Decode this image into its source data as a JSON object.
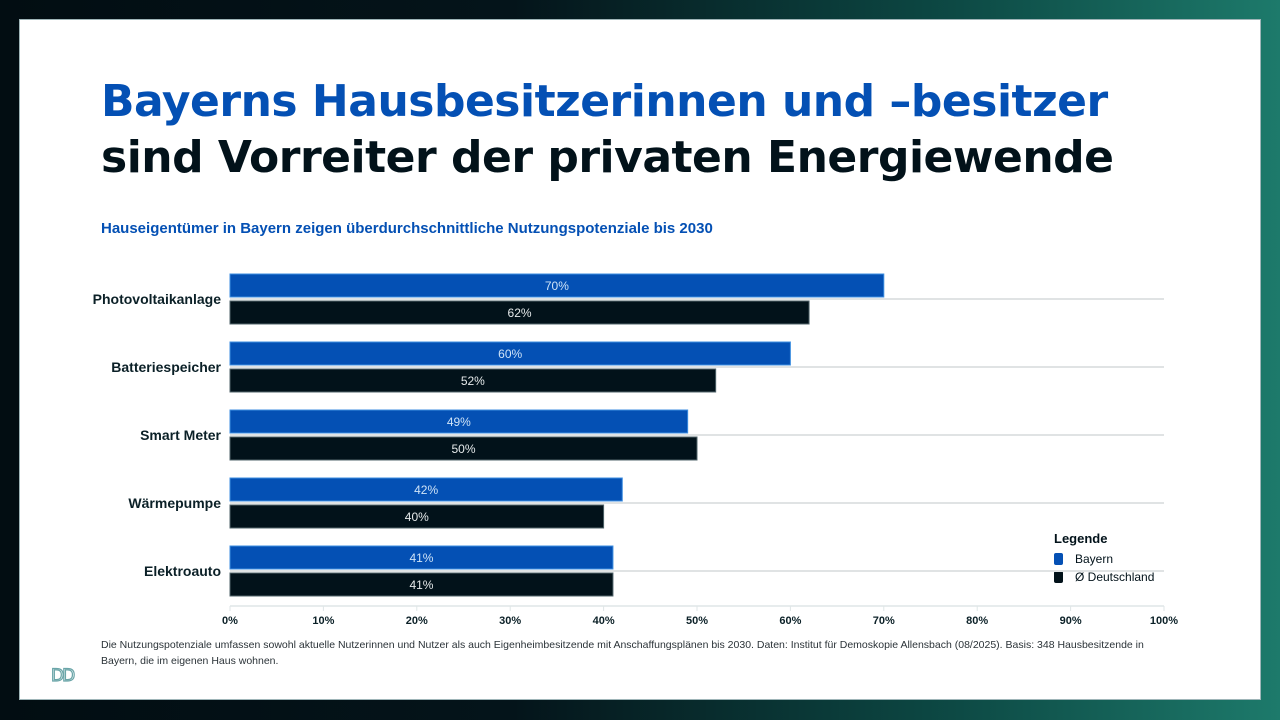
{
  "title": {
    "line1": "Bayerns Hausbesitzerinnen und –besitzer",
    "line2": "sind Vorreiter der privaten Energiewende"
  },
  "colors": {
    "accent_blue": "#0450b4",
    "dark": "#02121a",
    "grid": "#e0e3e4"
  },
  "chart_data": {
    "type": "bar",
    "orientation": "horizontal",
    "title": "Hauseigentümer in Bayern zeigen überdurchschnittliche Nutzungspotenziale bis 2030",
    "categories": [
      "Photovoltaikanlage",
      "Batteriespeicher",
      "Smart Meter",
      "Wärmepumpe",
      "Elektroauto"
    ],
    "series": [
      {
        "name": "Bayern",
        "color": "#0450b4",
        "values": [
          70,
          60,
          49,
          42,
          41
        ],
        "labels": [
          "70%",
          "60%",
          "49%",
          "42%",
          "41%"
        ]
      },
      {
        "name": "Ø Deutschland",
        "color": "#02121a",
        "values": [
          62,
          52,
          50,
          40,
          41
        ],
        "labels": [
          "62%",
          "52%",
          "50%",
          "40%",
          "41%"
        ]
      }
    ],
    "xlim": [
      0,
      100
    ],
    "xticks": [
      0,
      10,
      20,
      30,
      40,
      50,
      60,
      70,
      80,
      90,
      100
    ],
    "xtick_labels": [
      "0%",
      "10%",
      "20%",
      "30%",
      "40%",
      "50%",
      "60%",
      "70%",
      "80%",
      "90%",
      "100%"
    ],
    "xlabel": "",
    "ylabel": "",
    "grid": true,
    "legend": {
      "title": "Legende",
      "position": "bottom-right",
      "entries": [
        "Bayern",
        "Ø Deutschland"
      ]
    }
  },
  "footnote": "Die Nutzungspotenziale umfassen sowohl aktuelle Nutzerinnen und Nutzer als auch Eigenheimbesitzende mit Anschaffungsplänen bis 2030. Daten: Institut für Demoskopie Allensbach (08/2025). Basis: 348 Hausbesitzende in Bayern, die im eigenen Haus wohnen.",
  "logo": "DD"
}
